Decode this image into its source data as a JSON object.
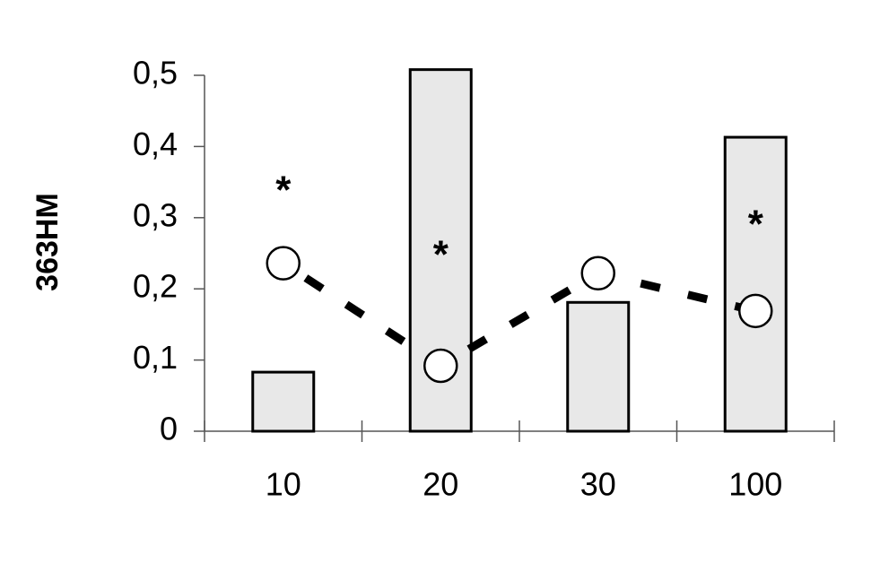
{
  "chart_data": {
    "type": "combo",
    "y_label": "363HM",
    "categories": [
      "10",
      "20",
      "30",
      "100"
    ],
    "bars": {
      "values": [
        0.083,
        0.508,
        0.181,
        0.413
      ],
      "color": "#e8e8e8"
    },
    "line": {
      "values": [
        0.236,
        0.092,
        0.222,
        0.169
      ],
      "color": "#000000"
    },
    "annotations": [
      {
        "text": "*",
        "category": "10",
        "y": 0.348
      },
      {
        "text": "*",
        "category": "20",
        "y": 0.257
      },
      {
        "text": "*",
        "category": "100",
        "y": 0.3
      }
    ],
    "ylim": [
      0,
      0.5
    ],
    "yticks": [
      0,
      {
        "value": 0.1,
        "label": "0,1"
      },
      {
        "value": 0.2,
        "label": "0,2"
      },
      {
        "value": 0.3,
        "label": "0,3"
      },
      {
        "value": 0.4,
        "label": "0,4"
      },
      {
        "value": 0.5,
        "label": "0,5"
      }
    ]
  }
}
